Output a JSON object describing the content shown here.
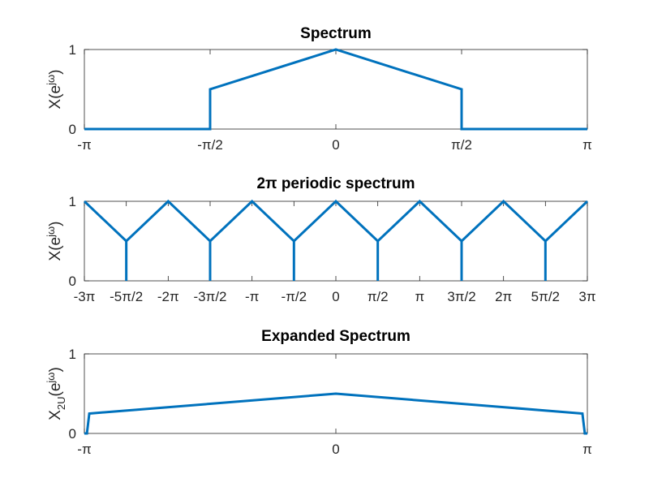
{
  "chart_data": [
    {
      "type": "line",
      "title": "Spectrum",
      "ylabel": {
        "base": "X(e",
        "sup": "jω",
        "close": ")"
      },
      "xlim": [
        -3.14159,
        3.14159
      ],
      "ylim": [
        0,
        1
      ],
      "xticks": [
        {
          "value": -3.14159,
          "label": "-π"
        },
        {
          "value": -1.5708,
          "label": "-π/2"
        },
        {
          "value": 0,
          "label": "0"
        },
        {
          "value": 1.5708,
          "label": "π/2"
        },
        {
          "value": 3.14159,
          "label": "π"
        }
      ],
      "yticks": [
        {
          "value": 0,
          "label": "0"
        },
        {
          "value": 1,
          "label": "1"
        }
      ],
      "series": [
        {
          "color": "#0072BD",
          "x": [
            -3.14159,
            -1.5708,
            -1.5708,
            0,
            1.5708,
            1.5708,
            3.14159
          ],
          "y": [
            0,
            0,
            0.5,
            1,
            0.5,
            0,
            0
          ]
        }
      ]
    },
    {
      "type": "line",
      "title": "2π periodic spectrum",
      "ylabel": {
        "base": "X(e",
        "sup": "jω",
        "close": ")"
      },
      "xlim": [
        -9.42478,
        9.42478
      ],
      "ylim": [
        0,
        1
      ],
      "xticks": [
        {
          "value": -9.42478,
          "label": "-3π"
        },
        {
          "value": -7.85398,
          "label": "-5π/2"
        },
        {
          "value": -6.28319,
          "label": "-2π"
        },
        {
          "value": -4.71239,
          "label": "-3π/2"
        },
        {
          "value": -3.14159,
          "label": "-π"
        },
        {
          "value": -1.5708,
          "label": "-π/2"
        },
        {
          "value": 0,
          "label": "0"
        },
        {
          "value": 1.5708,
          "label": "π/2"
        },
        {
          "value": 3.14159,
          "label": "π"
        },
        {
          "value": 4.71239,
          "label": "3π/2"
        },
        {
          "value": 6.28319,
          "label": "2π"
        },
        {
          "value": 7.85398,
          "label": "5π/2"
        },
        {
          "value": 9.42478,
          "label": "3π"
        }
      ],
      "yticks": [
        {
          "value": 0,
          "label": "0"
        },
        {
          "value": 1,
          "label": "1"
        }
      ],
      "series": [
        {
          "color": "#0072BD",
          "x": [
            -9.42478,
            -7.85398,
            -7.85398,
            -7.85398,
            -6.28319,
            -4.71239,
            -4.71239,
            -4.71239,
            -3.14159,
            -1.5708,
            -1.5708,
            -1.5708,
            0,
            1.5708,
            1.5708,
            1.5708,
            3.14159,
            4.71239,
            4.71239,
            4.71239,
            6.28319,
            7.85398,
            7.85398,
            7.85398,
            9.42478
          ],
          "y": [
            1,
            0.5,
            0,
            0.5,
            1,
            0.5,
            0,
            0.5,
            1,
            0.5,
            0,
            0.5,
            1,
            0.5,
            0,
            0.5,
            1,
            0.5,
            0,
            0.5,
            1,
            0.5,
            0,
            0.5,
            1
          ]
        }
      ]
    },
    {
      "type": "line",
      "title": "Expanded Spectrum",
      "ylabel": {
        "base": "X",
        "sub": "2U",
        "open": "(e",
        "sup": "jω",
        "close": ")"
      },
      "xlim": [
        -3.14159,
        3.14159
      ],
      "ylim": [
        0,
        1
      ],
      "xticks": [
        {
          "value": -3.14159,
          "label": "-π"
        },
        {
          "value": 0,
          "label": "0"
        },
        {
          "value": 3.14159,
          "label": "π"
        }
      ],
      "yticks": [
        {
          "value": 0,
          "label": "0"
        },
        {
          "value": 1,
          "label": "1"
        }
      ],
      "series": [
        {
          "color": "#0072BD",
          "x": [
            -3.14159,
            -3.11,
            -3.08,
            0,
            3.08,
            3.11,
            3.14159
          ],
          "y": [
            0,
            0,
            0.25,
            0.5,
            0.25,
            0,
            0
          ]
        }
      ]
    }
  ]
}
